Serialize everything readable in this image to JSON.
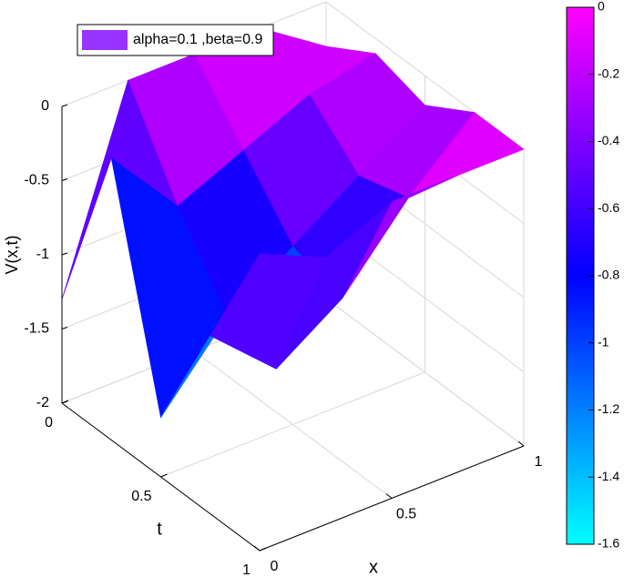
{
  "chart_data": {
    "type": "surface",
    "legend": "alpha=0.1 ,beta=0.9",
    "legend_color": "#9933ff",
    "xlabel": "x",
    "ylabel": "t",
    "zlabel": "V(x,t)",
    "x": [
      0,
      0.25,
      0.5,
      0.75,
      1
    ],
    "y": [
      0,
      0.25,
      0.5,
      0.75,
      1
    ],
    "z": [
      [
        -1.3,
        0,
        0,
        0,
        -0.3
      ],
      [
        -0.1,
        -0.6,
        -0.4,
        -0.2,
        -0.1
      ],
      [
        -1.6,
        -1.1,
        -0.8,
        -0.5,
        -0.2
      ],
      [
        -0.8,
        -1.2,
        -0.9,
        -0.4,
        0
      ],
      [
        0,
        -0.2,
        0,
        0,
        0
      ]
    ],
    "xlim": [
      0,
      1
    ],
    "ylim": [
      0,
      1
    ],
    "zlim": [
      -2,
      0
    ],
    "xticks": [
      0,
      0.5,
      1
    ],
    "yticks": [
      0,
      0.5,
      1
    ],
    "zticks": [
      0,
      -0.5,
      -1,
      -1.5,
      -2
    ],
    "clim": [
      -1.6,
      0
    ],
    "cticks": [
      0,
      -0.2,
      -0.4,
      -0.6,
      -0.8,
      -1,
      -1.2,
      -1.4,
      -1.6
    ],
    "colormap": [
      "#00ffff",
      "#0000ff",
      "#ff00ff"
    ],
    "grid": true
  }
}
